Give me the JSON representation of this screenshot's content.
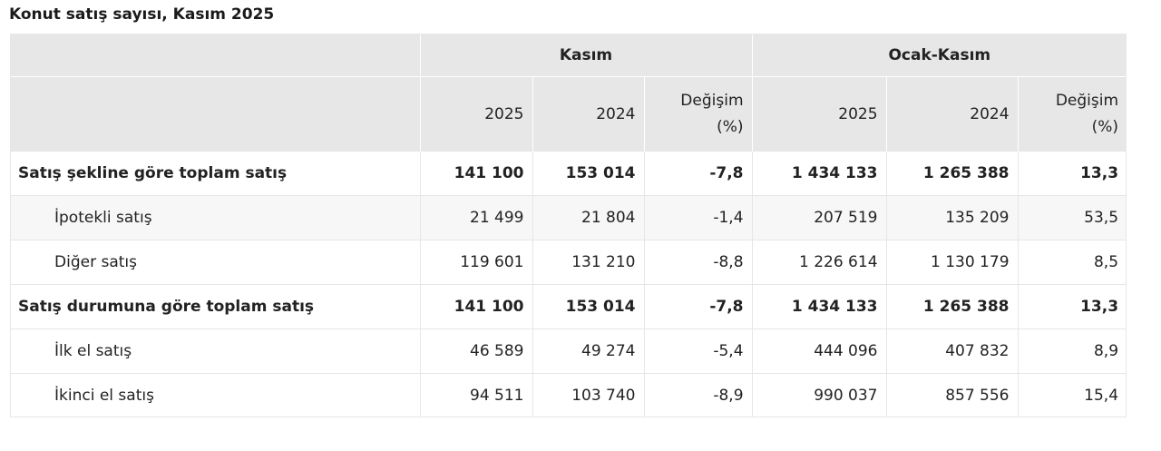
{
  "title": "Konut satış sayısı, Kasım 2025",
  "groups": [
    "Kasım",
    "Ocak-Kasım"
  ],
  "subheaders": [
    "2025",
    "2024",
    "Değişim (%)",
    "2025",
    "2024",
    "Değişim (%)"
  ],
  "rows": [
    {
      "label": "Satış şekline göre toplam satış",
      "type": "total",
      "values": [
        "141 100",
        "153 014",
        "-7,8",
        "1 434 133",
        "1 265 388",
        "13,3"
      ]
    },
    {
      "label": "İpotekli satış",
      "type": "sub",
      "values": [
        "21 499",
        "21 804",
        "-1,4",
        "207 519",
        "135 209",
        "53,5"
      ]
    },
    {
      "label": "Diğer satış",
      "type": "white",
      "values": [
        "119 601",
        "131 210",
        "-8,8",
        "1 226 614",
        "1 130 179",
        "8,5"
      ]
    },
    {
      "label": "Satış durumuna göre toplam satış",
      "type": "total",
      "values": [
        "141 100",
        "153 014",
        "-7,8",
        "1 434 133",
        "1 265 388",
        "13,3"
      ]
    },
    {
      "label": "İlk el satış",
      "type": "white",
      "values": [
        "46 589",
        "49 274",
        "-5,4",
        "444 096",
        "407 832",
        "8,9"
      ]
    },
    {
      "label": "İkinci el satış",
      "type": "white",
      "values": [
        "94 511",
        "103 740",
        "-8,9",
        "990 037",
        "857 556",
        "15,4"
      ]
    }
  ]
}
